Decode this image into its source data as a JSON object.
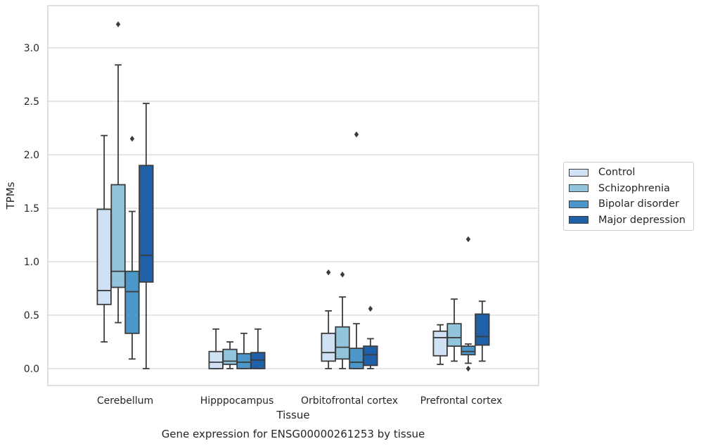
{
  "chart_data": {
    "type": "box",
    "caption": "Gene expression for ENSG00000261253 by tissue",
    "xlabel": "Tissue",
    "ylabel": "TPMs",
    "ylim": [
      -0.15,
      3.38
    ],
    "yticks": [
      0.0,
      0.5,
      1.0,
      1.5,
      2.0,
      2.5,
      3.0
    ],
    "ytick_labels": [
      "0.0",
      "0.5",
      "1.0",
      "1.5",
      "2.0",
      "2.5",
      "3.0"
    ],
    "grid": "horizontal",
    "legend_position": "right",
    "categories": [
      "Cerebellum",
      "Hipppocampus",
      "Orbitofrontal cortex",
      "Prefrontal cortex"
    ],
    "series": [
      {
        "name": "Control",
        "color": "#cfe1f2",
        "boxes": [
          {
            "whislo": 0.25,
            "q1": 0.6,
            "med": 0.73,
            "q3": 1.49,
            "whishi": 2.18,
            "fliers": []
          },
          {
            "whislo": 0.0,
            "q1": 0.0,
            "med": 0.06,
            "q3": 0.16,
            "whishi": 0.37,
            "fliers": []
          },
          {
            "whislo": 0.0,
            "q1": 0.07,
            "med": 0.15,
            "q3": 0.33,
            "whishi": 0.54,
            "fliers": [
              0.9
            ]
          },
          {
            "whislo": 0.04,
            "q1": 0.12,
            "med": 0.29,
            "q3": 0.35,
            "whishi": 0.41,
            "fliers": []
          }
        ]
      },
      {
        "name": "Schizophrenia",
        "color": "#93c4de",
        "boxes": [
          {
            "whislo": 0.43,
            "q1": 0.76,
            "med": 0.91,
            "q3": 1.72,
            "whishi": 2.84,
            "fliers": [
              3.22
            ]
          },
          {
            "whislo": 0.0,
            "q1": 0.04,
            "med": 0.07,
            "q3": 0.18,
            "whishi": 0.25,
            "fliers": []
          },
          {
            "whislo": 0.0,
            "q1": 0.09,
            "med": 0.2,
            "q3": 0.39,
            "whishi": 0.67,
            "fliers": [
              0.88
            ]
          },
          {
            "whislo": 0.07,
            "q1": 0.21,
            "med": 0.29,
            "q3": 0.42,
            "whishi": 0.65,
            "fliers": []
          }
        ]
      },
      {
        "name": "Bipolar disorder",
        "color": "#4b97c9",
        "boxes": [
          {
            "whislo": 0.09,
            "q1": 0.33,
            "med": 0.72,
            "q3": 0.91,
            "whishi": 1.47,
            "fliers": [
              2.15
            ]
          },
          {
            "whislo": 0.0,
            "q1": 0.0,
            "med": 0.06,
            "q3": 0.14,
            "whishi": 0.33,
            "fliers": []
          },
          {
            "whislo": 0.0,
            "q1": 0.0,
            "med": 0.06,
            "q3": 0.19,
            "whishi": 0.42,
            "fliers": [
              2.19
            ]
          },
          {
            "whislo": 0.05,
            "q1": 0.13,
            "med": 0.16,
            "q3": 0.21,
            "whishi": 0.23,
            "fliers": [
              1.21,
              0.0
            ]
          }
        ]
      },
      {
        "name": "Major depression",
        "color": "#2060a8",
        "boxes": [
          {
            "whislo": 0.0,
            "q1": 0.81,
            "med": 1.06,
            "q3": 1.9,
            "whishi": 2.48,
            "fliers": []
          },
          {
            "whislo": 0.0,
            "q1": 0.0,
            "med": 0.08,
            "q3": 0.15,
            "whishi": 0.37,
            "fliers": []
          },
          {
            "whislo": 0.0,
            "q1": 0.03,
            "med": 0.13,
            "q3": 0.21,
            "whishi": 0.28,
            "fliers": [
              0.56
            ]
          },
          {
            "whislo": 0.07,
            "q1": 0.22,
            "med": 0.3,
            "q3": 0.51,
            "whishi": 0.63,
            "fliers": []
          }
        ]
      }
    ]
  }
}
